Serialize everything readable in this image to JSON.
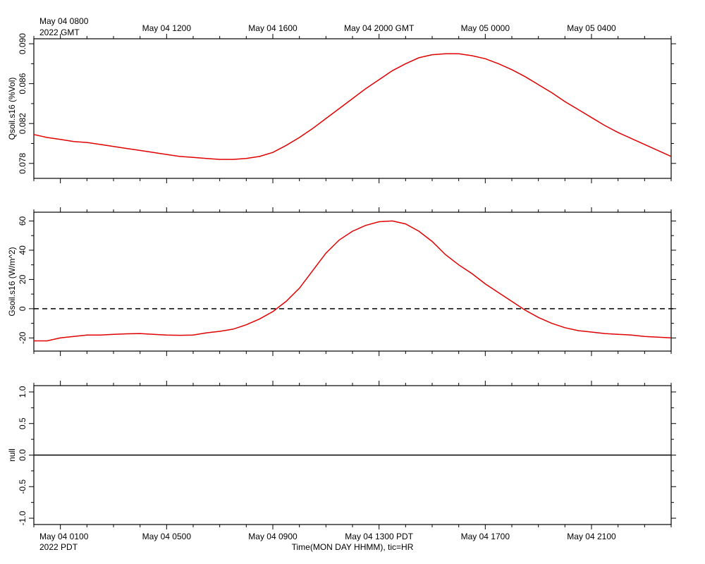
{
  "chart_data": {
    "type": "line",
    "top_axis": {
      "tick_labels": [
        "May 04 0800",
        "May 04 1200",
        "May 04 1600",
        "May 04 2000 GMT",
        "May 05 0000",
        "May 05 0400"
      ],
      "year_label": "2022 GMT"
    },
    "bottom_axis": {
      "tick_labels": [
        "May 04 0100",
        "May 04 0500",
        "May 04 0900",
        "May 04 1300 PDT",
        "May 04 1700",
        "May 04 2100"
      ],
      "year_label": "2022 PDT",
      "xlabel": "Time(MON DAY HHMM), tic=HR"
    },
    "x_range_hours_pdt": [
      0,
      24
    ],
    "panels": [
      {
        "ylabel": "Qsoil.s16 (%Vol)",
        "ylim": [
          0.0765,
          0.0905
        ],
        "yticks": [
          "0.078",
          "0.082",
          "0.086",
          "0.090"
        ],
        "ytick_values": [
          0.078,
          0.082,
          0.086,
          0.09
        ],
        "zero_line": false,
        "series": [
          {
            "color": "#e00000",
            "x": [
              0,
              0.5,
              1,
              1.5,
              2,
              2.5,
              3,
              3.5,
              4,
              4.5,
              5,
              5.5,
              6,
              6.5,
              7,
              7.5,
              8,
              8.5,
              9,
              9.5,
              10,
              10.5,
              11,
              11.5,
              12,
              12.5,
              13,
              13.5,
              14,
              14.5,
              15,
              15.5,
              16,
              16.5,
              17,
              17.5,
              18,
              18.5,
              19,
              19.5,
              20,
              20.5,
              21,
              21.5,
              22,
              22.5,
              23,
              23.5,
              24
            ],
            "y": [
              0.0809,
              0.0806,
              0.0804,
              0.0802,
              0.0801,
              0.0799,
              0.0797,
              0.0795,
              0.0793,
              0.0791,
              0.0789,
              0.0787,
              0.0786,
              0.0785,
              0.0784,
              0.0784,
              0.0785,
              0.0787,
              0.0791,
              0.0798,
              0.0806,
              0.0815,
              0.0825,
              0.0835,
              0.0845,
              0.0855,
              0.0864,
              0.0873,
              0.088,
              0.0886,
              0.0889,
              0.089,
              0.089,
              0.0888,
              0.0885,
              0.088,
              0.0874,
              0.0867,
              0.0859,
              0.0851,
              0.0842,
              0.0834,
              0.0826,
              0.0818,
              0.0811,
              0.0805,
              0.0799,
              0.0793,
              0.0787
            ]
          }
        ]
      },
      {
        "ylabel": "Gsoil.s16 (W/m^2)",
        "ylim": [
          -29,
          66
        ],
        "yticks": [
          "-20",
          "0",
          "20",
          "40",
          "60"
        ],
        "ytick_values": [
          -20,
          0,
          20,
          40,
          60
        ],
        "zero_line": true,
        "series": [
          {
            "color": "#e00000",
            "x": [
              0,
              0.5,
              1,
              1.5,
              2,
              2.5,
              3,
              3.5,
              4,
              4.5,
              5,
              5.5,
              6,
              6.5,
              7,
              7.5,
              8,
              8.5,
              9,
              9.5,
              10,
              10.5,
              11,
              11.5,
              12,
              12.5,
              13,
              13.5,
              14,
              14.5,
              15,
              15.5,
              16,
              16.5,
              17,
              17.5,
              18,
              18.5,
              19,
              19.5,
              20,
              20.5,
              21,
              21.5,
              22,
              22.5,
              23,
              23.5,
              24
            ],
            "y": [
              -22,
              -22,
              -20,
              -19,
              -18,
              -18,
              -17.5,
              -17.2,
              -17,
              -17.5,
              -18,
              -18.2,
              -18,
              -16.5,
              -15.5,
              -14,
              -11,
              -7,
              -2,
              5,
              14,
              26,
              38,
              47,
              53,
              57,
              59.5,
              60,
              58,
              53,
              46,
              37,
              30,
              24,
              17,
              11,
              5,
              -1,
              -6,
              -10,
              -13,
              -15,
              -16,
              -17,
              -17.5,
              -18,
              -19,
              -19.5,
              -20
            ]
          }
        ]
      },
      {
        "ylabel": "null",
        "ylim": [
          -1.1,
          1.1
        ],
        "yticks": [
          "-1.0",
          "-0.5",
          "0.0",
          "0.5",
          "1.0"
        ],
        "ytick_values": [
          -1.0,
          -0.5,
          0.0,
          0.5,
          1.0
        ],
        "zero_line": false,
        "solid_zero": true,
        "series": []
      }
    ],
    "grid": false,
    "legend": "none"
  }
}
